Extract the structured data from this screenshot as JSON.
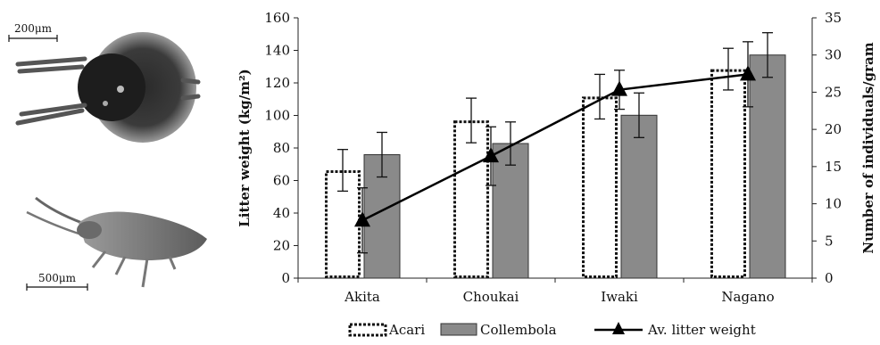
{
  "figure": {
    "photo_top": {
      "scale_label": "200μm"
    },
    "photo_bottom": {
      "scale_label": "500μm"
    }
  },
  "chart_data": {
    "type": "bar",
    "categories": [
      "Akita",
      "Choukai",
      "Iwaki",
      "Nagano"
    ],
    "ylabel": "Litter weight (kg/m²)",
    "y2label": "Number of individuals/gram",
    "ylim": [
      0,
      160
    ],
    "y2lim": [
      0,
      35
    ],
    "yticks": [
      0,
      20,
      40,
      60,
      80,
      100,
      120,
      140,
      160
    ],
    "y2ticks": [
      0,
      5,
      10,
      15,
      20,
      25,
      30,
      35
    ],
    "series": [
      {
        "name": "Acari",
        "kind": "bar",
        "style": "dotted-outline",
        "axis": "right",
        "values": [
          14.5,
          21.2,
          24.4,
          28.1
        ],
        "errors": [
          2.8,
          3.0,
          3.0,
          2.8
        ]
      },
      {
        "name": "Collembola",
        "kind": "bar",
        "style": "filled-gray",
        "axis": "right",
        "values": [
          16.6,
          18.1,
          21.9,
          30.0
        ],
        "errors": [
          3.0,
          2.9,
          3.0,
          3.0
        ]
      },
      {
        "name": "Av. litter weight",
        "kind": "line",
        "marker": "triangle",
        "axis": "left",
        "values": [
          35.5,
          75.0,
          115.8,
          125.3
        ],
        "errors": [
          20.0,
          18.0,
          12.0,
          20.0
        ]
      }
    ],
    "legend_position": "bottom",
    "colors": {
      "collembola_fill": "#8a8a8a",
      "line": "#000000"
    }
  }
}
